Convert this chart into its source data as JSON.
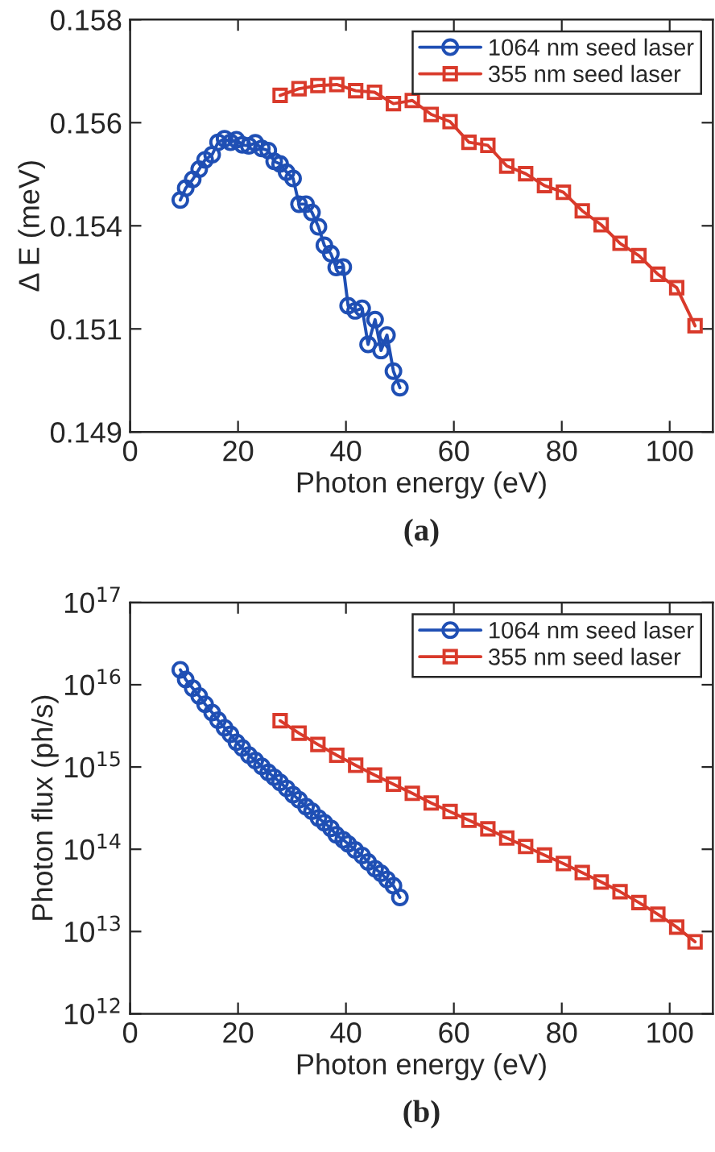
{
  "chart_data": [
    {
      "type": "line",
      "xlabel": "Photon energy (eV)",
      "ylabel": "Δ E (meV)",
      "annotations": [
        "(a)"
      ],
      "xlim": [
        0,
        108
      ],
      "xticks": [
        0,
        20,
        40,
        60,
        80,
        100
      ],
      "ylim": [
        0.1495,
        0.1575
      ],
      "yticks": [
        {
          "value": 0.1495,
          "label": "0.149"
        },
        {
          "value": 0.1515,
          "label": "0.151"
        },
        {
          "value": 0.1535,
          "label": "0.154"
        },
        {
          "value": 0.1555,
          "label": "0.156"
        },
        {
          "value": 0.1575,
          "label": "0.158"
        }
      ],
      "legend": "top right",
      "grid": false,
      "line_style": "solid",
      "series": [
        {
          "name": "1064 nm seed laser",
          "color": "#1f4fb4",
          "marker": "circle",
          "x": [
            9.3,
            10.3,
            11.6,
            12.8,
            13.9,
            15.2,
            16.3,
            17.5,
            18.6,
            19.7,
            20.8,
            22.0,
            23.2,
            24.4,
            25.6,
            26.7,
            27.8,
            29.0,
            30.2,
            31.3,
            32.6,
            33.7,
            34.9,
            36.0,
            37.2,
            38.2,
            39.5,
            40.4,
            41.7,
            43.0,
            44.1,
            45.4,
            46.5,
            47.6,
            48.8,
            50.0
          ],
          "values": [
            0.154,
            0.15423,
            0.1544,
            0.1546,
            0.15478,
            0.15488,
            0.15512,
            0.15519,
            0.15512,
            0.15517,
            0.15507,
            0.15505,
            0.15511,
            0.155,
            0.15496,
            0.15475,
            0.1547,
            0.15454,
            0.15442,
            0.15392,
            0.15392,
            0.15376,
            0.15348,
            0.15312,
            0.15296,
            0.15269,
            0.1527,
            0.15195,
            0.15185,
            0.1519,
            0.1512,
            0.15168,
            0.15108,
            0.15138,
            0.15068,
            0.15036
          ]
        },
        {
          "name": "355 nm seed laser",
          "color": "#d93a2b",
          "marker": "square",
          "x": [
            27.8,
            31.3,
            34.8,
            38.3,
            41.8,
            45.3,
            48.8,
            52.3,
            55.8,
            59.3,
            62.8,
            66.3,
            69.8,
            73.3,
            76.8,
            80.3,
            83.8,
            87.3,
            90.8,
            94.3,
            97.8,
            101.3,
            104.7
          ],
          "values": [
            0.15603,
            0.15616,
            0.15622,
            0.15624,
            0.15612,
            0.15609,
            0.15587,
            0.15593,
            0.15566,
            0.15552,
            0.15512,
            0.15506,
            0.15466,
            0.15451,
            0.15428,
            0.15415,
            0.15379,
            0.15352,
            0.15316,
            0.15292,
            0.15256,
            0.1523,
            0.15156
          ]
        }
      ]
    },
    {
      "type": "line",
      "xlabel": "Photon energy (eV)",
      "ylabel": "Photon flux (ph/s)",
      "annotations": [
        "(b)"
      ],
      "log": "y",
      "xlim": [
        0,
        108
      ],
      "xticks": [
        0,
        20,
        40,
        60,
        80,
        100
      ],
      "ylim": [
        1000000000000.0,
        1e+17
      ],
      "yticks": [
        {
          "value": 1000000000000.0,
          "label": "10$^{12}$"
        },
        {
          "value": 10000000000000.0,
          "label": "10$^{13}$"
        },
        {
          "value": 100000000000000.0,
          "label": "10$^{14}$"
        },
        {
          "value": 1000000000000000.0,
          "label": "10$^{15}$"
        },
        {
          "value": 1e+16,
          "label": "10$^{16}$"
        },
        {
          "value": 1e+17,
          "label": "10$^{17}$"
        }
      ],
      "legend": "top right",
      "grid": false,
      "line_style": "solid",
      "series": [
        {
          "name": "1064 nm seed laser",
          "color": "#1f4fb4",
          "marker": "circle",
          "x": [
            9.3,
            10.3,
            11.6,
            12.8,
            13.9,
            15.2,
            16.3,
            17.5,
            18.6,
            19.7,
            20.8,
            22.0,
            23.2,
            24.4,
            25.6,
            26.7,
            27.8,
            29.0,
            30.2,
            31.3,
            32.6,
            33.7,
            34.9,
            36.0,
            37.2,
            38.2,
            39.5,
            40.4,
            41.7,
            43.0,
            44.1,
            45.4,
            46.5,
            47.6,
            48.8,
            50.0
          ],
          "values": [
            1.52e+16,
            1.16e+16,
            9100000000000000.0,
            7300000000000000.0,
            5800000000000000.0,
            4600000000000000.0,
            3700000000000000.0,
            3000000000000000.0,
            2500000000000000.0,
            2000000000000000.0,
            1700000000000000.0,
            1400000000000000.0,
            1200000000000000.0,
            1020000000000000.0,
            860000000000000.0,
            750000000000000.0,
            650000000000000.0,
            550000000000000.0,
            460000000000000.0,
            400000000000000.0,
            330000000000000.0,
            290000000000000.0,
            240000000000000.0,
            210000000000000.0,
            180000000000000.0,
            150000000000000.0,
            130000000000000.0,
            116000000000000.0,
            98000000000000.0,
            84000000000000.0,
            70000000000000.0,
            58000000000000.0,
            51000000000000.0,
            43000000000000.0,
            36000000000000.0,
            26000000000000.0
          ]
        },
        {
          "name": "355 nm seed laser",
          "color": "#d93a2b",
          "marker": "square",
          "x": [
            27.8,
            31.3,
            34.8,
            38.3,
            41.8,
            45.3,
            48.8,
            52.3,
            55.8,
            59.3,
            62.8,
            66.3,
            69.8,
            73.3,
            76.8,
            80.3,
            83.8,
            87.3,
            90.8,
            94.3,
            97.8,
            101.3,
            104.7
          ],
          "values": [
            3650000000000000.0,
            2580000000000000.0,
            1880000000000000.0,
            1390000000000000.0,
            1050000000000000.0,
            798000000000000.0,
            618000000000000.0,
            479000000000000.0,
            365000000000000.0,
            287000000000000.0,
            225000000000000.0,
            177000000000000.0,
            137000000000000.0,
            108000000000000.0,
            85000000000000.0,
            67000000000000.0,
            52000000000000.0,
            40000000000000.0,
            30500000000000.0,
            22500000000000.0,
            16200000000000.0,
            11300000000000.0,
            7500000000000.0
          ]
        }
      ]
    }
  ]
}
